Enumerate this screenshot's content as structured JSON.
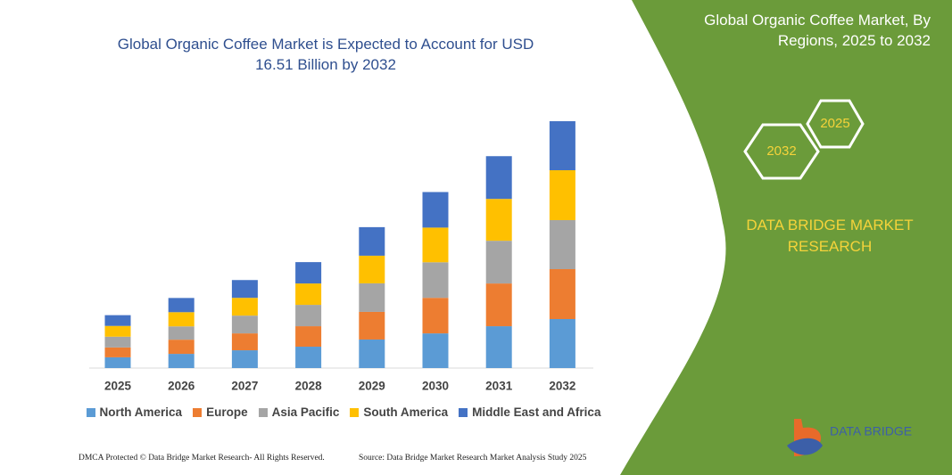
{
  "chart_data": {
    "type": "bar",
    "stacked": true,
    "title": "Global Organic Coffee Market is Expected to Account for USD 16.51 Billion by 2032",
    "categories": [
      "2025",
      "2026",
      "2027",
      "2028",
      "2029",
      "2030",
      "2031",
      "2032"
    ],
    "series": [
      {
        "name": "North America",
        "color": "#5b9bd5",
        "values": [
          0.72,
          0.95,
          1.19,
          1.43,
          1.91,
          2.32,
          2.8,
          3.28
        ]
      },
      {
        "name": "Europe",
        "color": "#ed7d31",
        "values": [
          0.66,
          0.95,
          1.13,
          1.37,
          1.85,
          2.38,
          2.86,
          3.34
        ]
      },
      {
        "name": "Asia Pacific",
        "color": "#a5a5a5",
        "values": [
          0.72,
          0.89,
          1.19,
          1.43,
          1.91,
          2.38,
          2.86,
          3.28
        ]
      },
      {
        "name": "South America",
        "color": "#ffc000",
        "values": [
          0.72,
          0.95,
          1.19,
          1.43,
          1.85,
          2.32,
          2.8,
          3.34
        ]
      },
      {
        "name": "Middle East and Africa",
        "color": "#4472c4",
        "values": [
          0.72,
          0.95,
          1.19,
          1.43,
          1.91,
          2.38,
          2.86,
          3.28
        ]
      }
    ]
  },
  "panel": {
    "title": "Global Organic Coffee Market, By Regions, 2025 to 2032",
    "hexagons": [
      "2025",
      "2032"
    ],
    "brand": "DATA BRIDGE MARKET RESEARCH"
  },
  "logo": "DATA BRIDGE",
  "footer": {
    "left": "DMCA Protected © Data Bridge Market Research- All Rights Reserved.",
    "right": "Source: Data Bridge Market Research Market Analysis Study 2025"
  }
}
